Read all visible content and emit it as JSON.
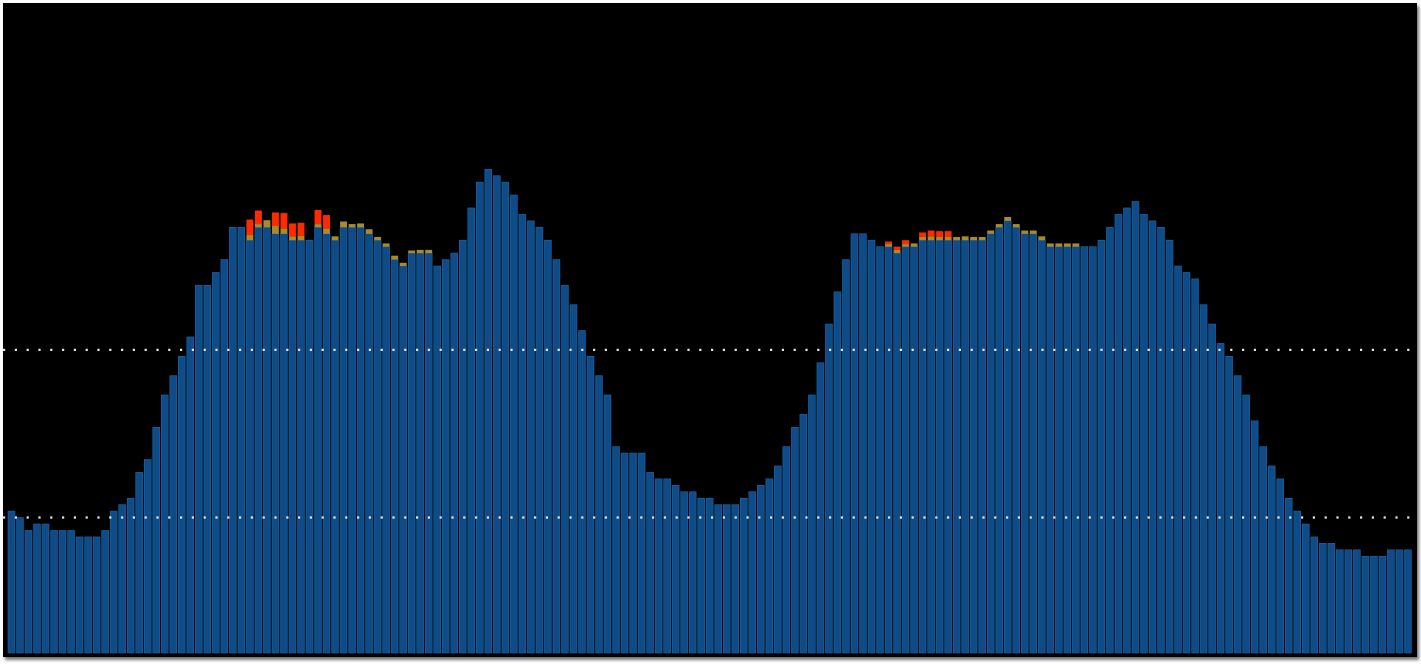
{
  "colors": {
    "background": "#000000",
    "bar_base": "#0f4c87",
    "bar_edge": "#1a66ad",
    "bar_warning": "#a98b2a",
    "bar_critical": "#ff2a00",
    "threshold_line": "#e6e6e6"
  },
  "chart_data": {
    "type": "bar",
    "stacked": true,
    "title": "",
    "xlabel": "",
    "ylabel": "",
    "ylim": [
      0,
      100
    ],
    "grid": false,
    "legend": "none",
    "thresholds": [
      {
        "value": 47,
        "style": "dotted"
      },
      {
        "value": 21,
        "style": "dotted"
      }
    ],
    "series": [
      {
        "values": [
          22,
          21,
          19,
          20,
          20,
          19,
          19,
          19,
          18,
          18,
          18,
          19,
          22,
          23,
          24,
          28,
          30,
          35,
          40,
          43,
          46,
          49,
          57,
          57,
          59,
          61,
          66,
          66,
          64,
          66,
          66,
          65,
          65,
          64,
          64,
          64,
          66,
          65,
          64,
          66,
          66,
          66,
          65,
          64,
          63,
          61,
          60,
          62,
          62,
          62,
          60,
          61,
          62,
          64,
          69,
          73,
          75,
          74,
          73,
          71,
          68,
          67,
          66,
          64,
          61,
          57,
          54,
          50,
          46,
          43,
          40,
          32,
          31,
          31,
          31,
          28,
          27,
          27,
          26,
          25,
          25,
          24,
          24,
          23,
          23,
          23,
          24,
          25,
          26,
          27,
          29,
          32,
          35,
          37,
          40,
          45,
          51,
          56,
          61,
          65,
          65,
          64,
          63,
          63,
          62,
          63,
          63,
          64,
          64,
          64,
          64,
          64,
          64,
          64,
          64,
          65,
          66,
          67,
          66,
          65,
          65,
          64,
          63,
          63,
          63,
          63,
          63,
          63,
          64,
          66,
          68,
          69,
          70,
          68,
          67,
          66,
          64,
          60,
          59,
          58,
          54,
          51,
          48,
          46,
          43,
          40,
          36,
          32,
          29,
          27,
          24,
          22,
          20,
          18,
          17,
          17,
          16,
          16,
          16,
          15,
          15,
          15,
          16,
          16,
          16
        ]
      },
      {
        "values": [
          0,
          0,
          0,
          0,
          0,
          0,
          0,
          0,
          0,
          0,
          0,
          0,
          0,
          0,
          0,
          0,
          0,
          0,
          0,
          0,
          0,
          0,
          0,
          0,
          0,
          0,
          0,
          0,
          0.8,
          0.5,
          1.1,
          1.2,
          0.8,
          0.6,
          0.7,
          0,
          0.5,
          0.8,
          0.6,
          0.9,
          0.5,
          0.6,
          0.7,
          0.5,
          0.5,
          0.6,
          0.5,
          0.4,
          0.5,
          0.5,
          0,
          0,
          0,
          0,
          0,
          0,
          0,
          0,
          0,
          0,
          0,
          0,
          0,
          0,
          0,
          0,
          0,
          0,
          0,
          0,
          0,
          0,
          0,
          0,
          0,
          0,
          0,
          0,
          0,
          0,
          0,
          0,
          0,
          0,
          0,
          0,
          0,
          0,
          0,
          0,
          0,
          0,
          0,
          0,
          0,
          0,
          0,
          0,
          0,
          0,
          0,
          0,
          0,
          0.4,
          0.5,
          0.4,
          0.5,
          0.5,
          0.6,
          0.5,
          0.5,
          0.5,
          0.6,
          0.5,
          0.5,
          0.5,
          0.5,
          0.6,
          0.5,
          0.5,
          0.5,
          0.6,
          0.5,
          0.5,
          0.5,
          0.5,
          0,
          0,
          0,
          0,
          0,
          0,
          0,
          0,
          0,
          0,
          0,
          0,
          0,
          0,
          0,
          0,
          0,
          0,
          0,
          0,
          0,
          0,
          0,
          0,
          0,
          0,
          0,
          0,
          0,
          0,
          0,
          0,
          0,
          0,
          0,
          0,
          0,
          0,
          0,
          0,
          0
        ]
      },
      {
        "values": [
          0,
          0,
          0,
          0,
          0,
          0,
          0,
          0,
          0,
          0,
          0,
          0,
          0,
          0,
          0,
          0,
          0,
          0,
          0,
          0,
          0,
          0,
          0,
          0,
          0,
          0,
          0,
          0,
          2.4,
          2.1,
          0,
          2.1,
          2.4,
          2,
          2,
          0,
          2.2,
          2.1,
          0,
          0,
          0,
          0,
          0,
          0,
          0,
          0,
          0,
          0,
          0,
          0,
          0,
          0,
          0,
          0,
          0,
          0,
          0,
          0,
          0,
          0,
          0,
          0,
          0,
          0,
          0,
          0,
          0,
          0,
          0,
          0,
          0,
          0,
          0,
          0,
          0,
          0,
          0,
          0,
          0,
          0,
          0,
          0,
          0,
          0,
          0,
          0,
          0,
          0,
          0,
          0,
          0,
          0,
          0,
          0,
          0,
          0,
          0,
          0,
          0,
          0,
          0,
          0,
          0,
          0.4,
          0.5,
          0.6,
          0,
          0.7,
          0.9,
          0.9,
          0.9,
          0,
          0,
          0,
          0,
          0,
          0,
          0,
          0,
          0,
          0,
          0,
          0,
          0,
          0,
          0,
          0,
          0,
          0,
          0,
          0,
          0,
          0,
          0,
          0,
          0,
          0,
          0,
          0,
          0,
          0,
          0,
          0,
          0,
          0,
          0,
          0,
          0,
          0,
          0,
          0,
          0,
          0,
          0,
          0,
          0,
          0,
          0,
          0,
          0,
          0,
          0,
          0,
          0,
          0,
          0,
          0,
          0,
          0,
          0,
          0,
          0
        ]
      }
    ]
  }
}
